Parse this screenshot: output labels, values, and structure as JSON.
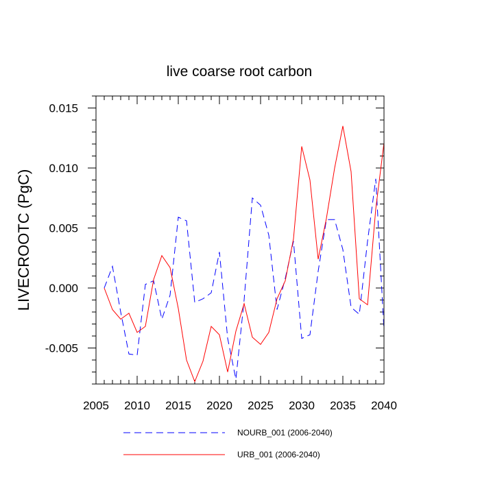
{
  "chart_data": {
    "type": "line",
    "title": "live coarse root carbon",
    "ylabel": "LIVECROOTC  (PgC)",
    "xlabel": "",
    "xlim": [
      2005,
      2040
    ],
    "ylim": [
      -0.008,
      0.016
    ],
    "x_ticks": [
      {
        "value": 2005,
        "label": "2005"
      },
      {
        "value": 2010,
        "label": "2010"
      },
      {
        "value": 2015,
        "label": "2015"
      },
      {
        "value": 2020,
        "label": "2020"
      },
      {
        "value": 2025,
        "label": "2025"
      },
      {
        "value": 2030,
        "label": "2030"
      },
      {
        "value": 2035,
        "label": "2035"
      },
      {
        "value": 2040,
        "label": "2040"
      }
    ],
    "y_ticks": [
      {
        "value": -0.005,
        "label": "-0.005"
      },
      {
        "value": 0.0,
        "label": "0.000"
      },
      {
        "value": 0.005,
        "label": "0.005"
      },
      {
        "value": 0.01,
        "label": "0.010"
      },
      {
        "value": 0.015,
        "label": "0.015"
      }
    ],
    "x": [
      2006,
      2007,
      2008,
      2009,
      2010,
      2011,
      2012,
      2013,
      2014,
      2015,
      2016,
      2017,
      2018,
      2019,
      2020,
      2021,
      2022,
      2023,
      2024,
      2025,
      2026,
      2027,
      2028,
      2029,
      2030,
      2031,
      2032,
      2033,
      2034,
      2035,
      2036,
      2037,
      2038,
      2039,
      2040
    ],
    "series": [
      {
        "name": "NOURB_001 (2006-2040)",
        "style": "dashed",
        "color": "#0000ff",
        "values": [
          0.0,
          0.0018,
          -0.002,
          -0.0055,
          -0.0056,
          0.0003,
          0.0006,
          -0.0026,
          -0.0006,
          0.0059,
          0.0056,
          -0.0012,
          -0.0009,
          -0.0004,
          0.003,
          -0.0042,
          -0.0076,
          -0.001,
          0.0075,
          0.0069,
          0.0044,
          -0.0018,
          0.0008,
          0.0039,
          -0.0042,
          -0.0039,
          0.0014,
          0.0057,
          0.0057,
          0.0032,
          -0.0016,
          -0.0022,
          0.0039,
          0.0091,
          -0.0035
        ]
      },
      {
        "name": "URB_001 (2006-2040)",
        "style": "solid",
        "color": "#ff0000",
        "values": [
          0.0,
          -0.0018,
          -0.0026,
          -0.0021,
          -0.0037,
          -0.0032,
          0.0007,
          0.0027,
          0.0017,
          -0.0017,
          -0.006,
          -0.0078,
          -0.0061,
          -0.0032,
          -0.0039,
          -0.007,
          -0.0036,
          -0.0013,
          -0.0041,
          -0.0047,
          -0.0037,
          -0.0009,
          0.0006,
          0.0041,
          0.0118,
          0.009,
          0.0024,
          0.0058,
          0.01,
          0.0135,
          0.0097,
          -0.0009,
          -0.0014,
          0.0066,
          0.0121
        ]
      }
    ],
    "legend_position": "bottom"
  }
}
